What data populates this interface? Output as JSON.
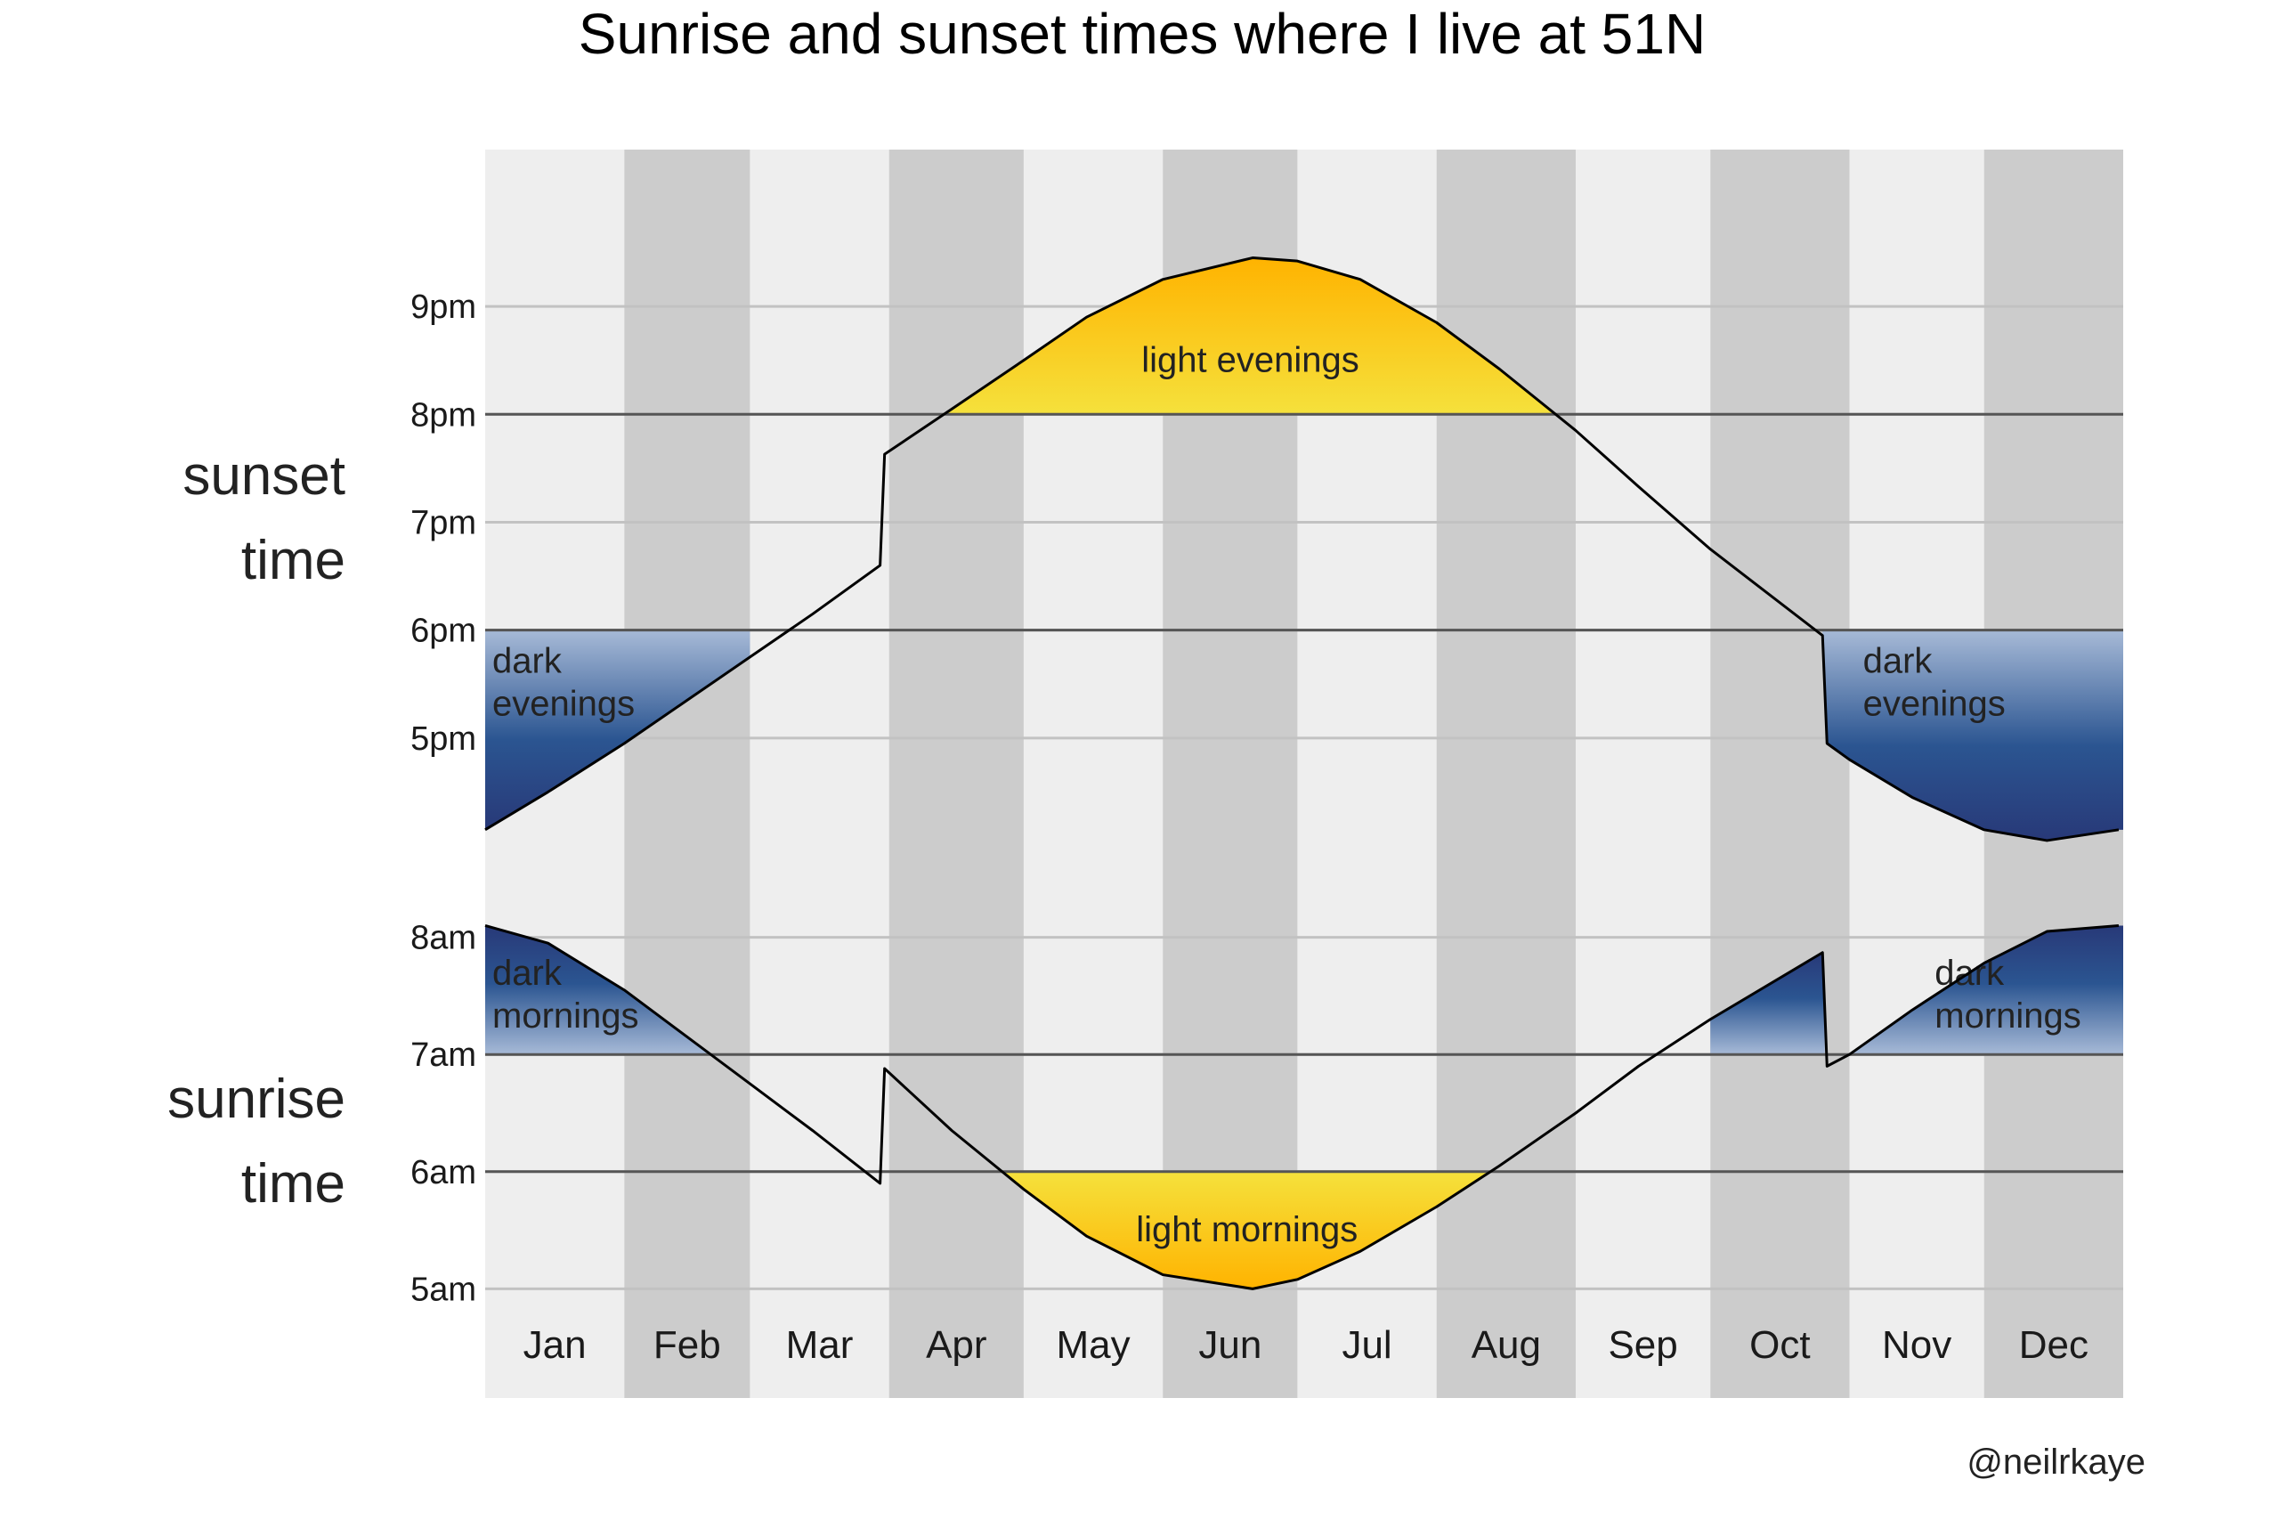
{
  "chart_data": {
    "type": "line",
    "title": "Sunrise and sunset times where I live at 51N",
    "credit": "@neilrkaye",
    "months": [
      "Jan",
      "Feb",
      "Mar",
      "Apr",
      "May",
      "Jun",
      "Jul",
      "Aug",
      "Sep",
      "Oct",
      "Nov",
      "Dec"
    ],
    "month_days": [
      31,
      28,
      31,
      30,
      31,
      30,
      31,
      31,
      30,
      31,
      30,
      31
    ],
    "colors": {
      "band_light": "#eeeeee",
      "band_dark": "#cccccc",
      "line": "#000000",
      "light_fill_top": "#f5e13c",
      "light_fill_bottom": "#ffb300",
      "dark_fill_light": "#a7bad7",
      "dark_fill_mid": "#2b5591",
      "dark_fill_deep": "#283978",
      "threshold_line": "#555555"
    },
    "panels": [
      {
        "id": "sunset",
        "label_lines": [
          "sunset",
          "time"
        ],
        "ylim": [
          16.0,
          21.9
        ],
        "ticks": [
          17,
          18,
          19,
          20,
          21
        ],
        "tick_labels": [
          "5pm",
          "6pm",
          "7pm",
          "8pm",
          "9pm"
        ],
        "thresholds": [
          18,
          20
        ],
        "x": [
          "Jan 1",
          "Jan 15",
          "Feb 1",
          "Feb 15",
          "Mar 1",
          "Mar 15",
          "Mar 30",
          "Mar 31",
          "Apr 15",
          "May 1",
          "May 15",
          "Jun 1",
          "Jun 21",
          "Jul 1",
          "Jul 15",
          "Aug 1",
          "Aug 15",
          "Sep 1",
          "Sep 15",
          "Oct 1",
          "Oct 26",
          "Oct 27",
          "Nov 1",
          "Nov 15",
          "Dec 1",
          "Dec 15",
          "Dec 31"
        ],
        "values": [
          16.15,
          16.5,
          16.95,
          17.35,
          17.75,
          18.15,
          18.6,
          19.63,
          20.05,
          20.5,
          20.9,
          21.25,
          21.45,
          21.42,
          21.25,
          20.85,
          20.42,
          19.85,
          19.33,
          18.75,
          17.95,
          16.95,
          16.8,
          16.45,
          16.15,
          16.05,
          16.15
        ],
        "regions": [
          {
            "label_lines": [
              "light evenings"
            ],
            "kind": "light",
            "from": "Apr 1",
            "to": "Aug 31",
            "baseline": 20,
            "side": "above"
          },
          {
            "label_lines": [
              "dark",
              "evenings"
            ],
            "kind": "dark",
            "from": "Jan 1",
            "to": "Feb 28",
            "baseline": 18,
            "side": "below"
          },
          {
            "label_lines": [
              "dark",
              "evenings"
            ],
            "kind": "dark",
            "from": "Oct 26",
            "to": "Dec 31",
            "baseline": 18,
            "side": "below"
          }
        ]
      },
      {
        "id": "sunrise",
        "label_lines": [
          "sunrise",
          "time"
        ],
        "ylim": [
          4.6,
          8.4
        ],
        "ticks": [
          5,
          6,
          7,
          8
        ],
        "tick_labels": [
          "5am",
          "6am",
          "7am",
          "8am"
        ],
        "thresholds": [
          6,
          7
        ],
        "x": [
          "Jan 1",
          "Jan 15",
          "Feb 1",
          "Feb 15",
          "Mar 1",
          "Mar 15",
          "Mar 30",
          "Mar 31",
          "Apr 15",
          "May 1",
          "May 15",
          "Jun 1",
          "Jun 21",
          "Jul 1",
          "Jul 15",
          "Aug 1",
          "Aug 15",
          "Sep 1",
          "Sep 15",
          "Oct 1",
          "Oct 26",
          "Oct 27",
          "Nov 1",
          "Nov 15",
          "Dec 1",
          "Dec 15",
          "Dec 31"
        ],
        "values": [
          8.1,
          7.95,
          7.55,
          7.15,
          6.75,
          6.35,
          5.9,
          6.88,
          6.35,
          5.85,
          5.45,
          5.12,
          5.0,
          5.08,
          5.32,
          5.7,
          6.05,
          6.5,
          6.9,
          7.3,
          7.87,
          6.9,
          7.0,
          7.38,
          7.78,
          8.05,
          8.1
        ],
        "regions": [
          {
            "label_lines": [
              "light mornings"
            ],
            "kind": "light",
            "from": "Apr 1",
            "to": "Aug 31",
            "baseline": 6,
            "side": "below"
          },
          {
            "label_lines": [
              "dark",
              "mornings"
            ],
            "kind": "dark",
            "from": "Jan 1",
            "to": "Feb 28",
            "baseline": 7,
            "side": "above"
          },
          {
            "label_lines": [
              "dark",
              "mornings"
            ],
            "kind": "dark",
            "from": "Oct 1",
            "to": "Dec 31",
            "baseline": 7,
            "side": "above"
          }
        ]
      }
    ]
  }
}
